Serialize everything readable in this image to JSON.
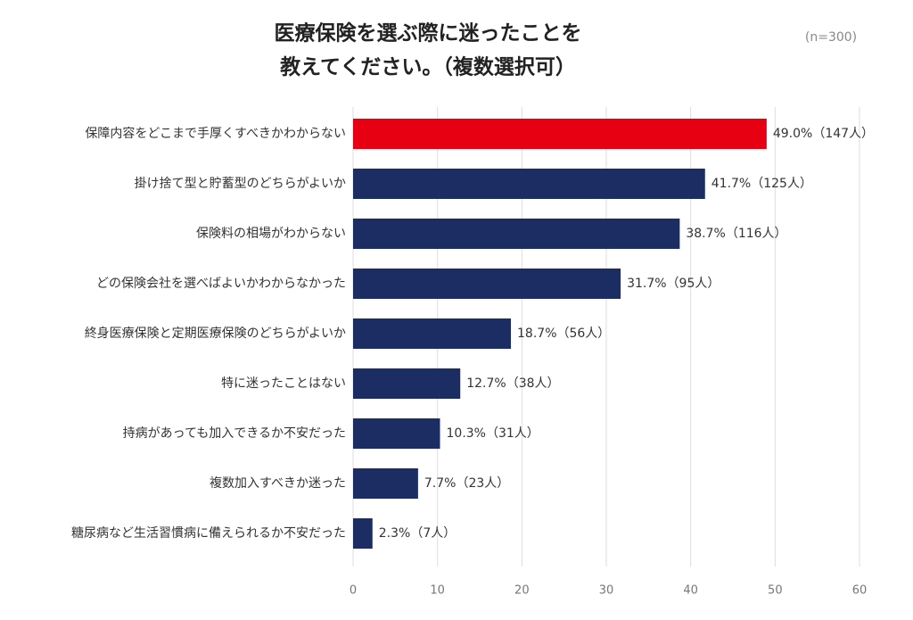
{
  "chart_data": {
    "type": "bar",
    "orientation": "horizontal",
    "title": [
      "医療保険を選ぶ際に迷ったことを",
      "教えてください。（複数選択可）"
    ],
    "note": "(n=300)",
    "categories": [
      "保障内容をどこまで手厚くすべきかわからない",
      "掛け捨て型と貯蓄型のどちらがよいか",
      "保険料の相場がわからない",
      "どの保険会社を選べばよいかわからなかった",
      "終身医療保険と定期医療保険のどちらがよいか",
      "特に迷ったことはない",
      "持病があっても加入できるか不安だった",
      "複数加入すべきか迷った",
      "糖尿病など生活習慣病に備えられるか不安だった"
    ],
    "values": [
      49.0,
      41.7,
      38.7,
      31.7,
      18.7,
      12.7,
      10.3,
      7.7,
      2.3
    ],
    "value_labels": [
      "49.0%（147人）",
      "41.7%（125人）",
      "38.7%（116人）",
      "31.7%（95人）",
      "18.7%（56人）",
      "12.7%（38人）",
      "10.3%（31人）",
      "7.7%（23人）",
      "2.3%（7人）"
    ],
    "colors": [
      "#e60012",
      "#1b2d63",
      "#1b2d63",
      "#1b2d63",
      "#1b2d63",
      "#1b2d63",
      "#1b2d63",
      "#1b2d63",
      "#1b2d63"
    ],
    "xlim": [
      0,
      60
    ],
    "xticks": [
      0,
      10,
      20,
      30,
      40,
      50,
      60
    ],
    "grid": true
  }
}
